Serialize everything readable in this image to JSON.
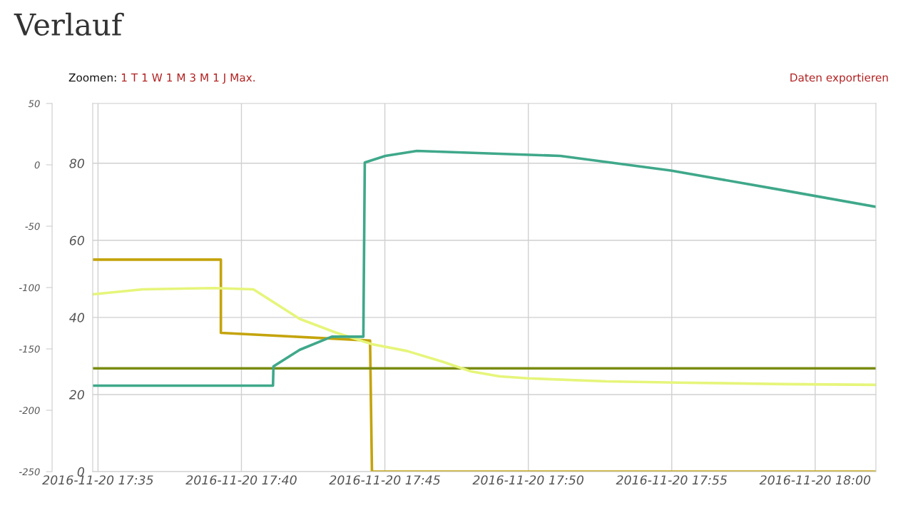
{
  "chart_data": {
    "type": "line",
    "title": "Verlauf",
    "annotations": [
      "Zoomen:",
      "1 T",
      "1 W",
      "1 M",
      "3 M",
      "1 J",
      "Max.",
      "Daten exportieren"
    ],
    "series": [
      {
        "color": "#c4a40c",
        "x": [
          "2016-11-20T17:34:49",
          "2016-11-20T17:39:17",
          "2016-11-20T17:39:17",
          "2016-11-20T17:44:29",
          "2016-11-20T17:44:33",
          "2016-11-20T18:02:07"
        ],
        "values": [
          55,
          55,
          36,
          34,
          0,
          0
        ]
      },
      {
        "color": "#7a8c10",
        "x": [
          "2016-11-20T17:34:49",
          "2016-11-20T18:02:07"
        ],
        "values": [
          26.8,
          26.8
        ]
      },
      {
        "color": "#e6f57a",
        "x": [
          "2016-11-20T17:34:49",
          "2016-11-20T17:36:34",
          "2016-11-20T17:39:03",
          "2016-11-20T17:40:25",
          "2016-11-20T17:42:02",
          "2016-11-20T17:43:17",
          "2016-11-20T17:44:32",
          "2016-11-20T17:45:46",
          "2016-11-20T17:47:01",
          "2016-11-20T17:48:00",
          "2016-11-20T17:49:00",
          "2016-11-20T17:50:00",
          "2016-11-20T17:52:44",
          "2016-11-20T17:55:13",
          "2016-11-20T17:58:57",
          "2016-11-20T18:02:07"
        ],
        "values": [
          46,
          47.3,
          47.6,
          47.3,
          39.6,
          36.1,
          33.1,
          31.3,
          28.5,
          26,
          24.7,
          24.2,
          23.4,
          23.1,
          22.7,
          22.5
        ]
      },
      {
        "color": "#3fa88a",
        "x": [
          "2016-11-20T17:34:49",
          "2016-11-20T17:41:06",
          "2016-11-20T17:41:07",
          "2016-11-20T17:42:02",
          "2016-11-20T17:43:09",
          "2016-11-20T17:44:15",
          "2016-11-20T17:44:18",
          "2016-11-20T17:45:01",
          "2016-11-20T17:46:07",
          "2016-11-20T17:51:07",
          "2016-11-20T17:54:58",
          "2016-11-20T17:58:57",
          "2016-11-20T18:02:07"
        ],
        "values": [
          22.3,
          22.3,
          27.3,
          31.6,
          35,
          35,
          80.2,
          81.9,
          83.2,
          81.9,
          78.1,
          72.9,
          68.7
        ]
      }
    ],
    "xlim": [
      "2016-11-20T17:34:49",
      "2016-11-20T18:02:07"
    ],
    "xticks": [
      {
        "value": "2016-11-20T17:35",
        "label": "2016-11-20 17:35"
      },
      {
        "value": "2016-11-20T17:40",
        "label": "2016-11-20 17:40"
      },
      {
        "value": "2016-11-20T17:45",
        "label": "2016-11-20 17:45"
      },
      {
        "value": "2016-11-20T17:50",
        "label": "2016-11-20 17:50"
      },
      {
        "value": "2016-11-20T17:55",
        "label": "2016-11-20 17:55"
      },
      {
        "value": "2016-11-20T18:00",
        "label": "2016-11-20 18:00"
      }
    ],
    "ylim": [
      0,
      95.5
    ],
    "yticks": [
      0,
      20,
      40,
      60,
      80
    ],
    "y2lim": [
      -250,
      50
    ],
    "y2ticks": [
      -250,
      -200,
      -150,
      -100,
      -50,
      0,
      50
    ],
    "grid": true,
    "marker": "none",
    "line_style": "solid"
  }
}
